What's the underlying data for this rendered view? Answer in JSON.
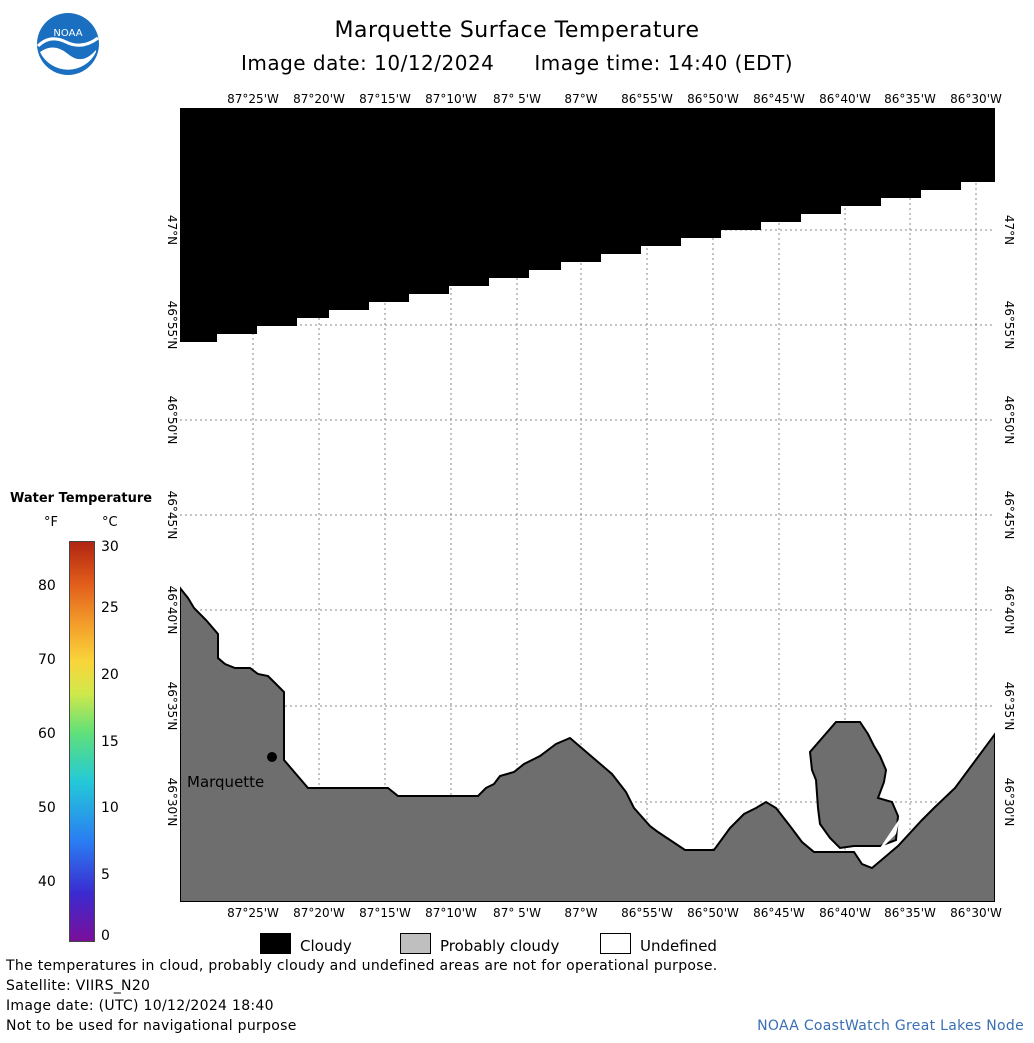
{
  "title": "Marquette Surface Temperature",
  "image_date_label": "Image date: 10/12/2024",
  "image_time_label": "Image time: 14:40 (EDT)",
  "logo_text": "NOAA",
  "longitude_labels": [
    "87°25'W",
    "87°20'W",
    "87°15'W",
    "87°10'W",
    "87° 5'W",
    "87°W",
    "86°55'W",
    "86°50'W",
    "86°45'W",
    "86°40'W",
    "86°35'W",
    "86°30'W"
  ],
  "latitude_labels": [
    "47°N",
    "46°55'N",
    "46°50'N",
    "46°45'N",
    "46°40'N",
    "46°35'N",
    "46°30'N"
  ],
  "city_label": "Marquette",
  "legend": {
    "title": "Water Temperature",
    "unit_f": "°F",
    "unit_c": "°C",
    "fahrenheit_ticks": [
      "80",
      "70",
      "60",
      "50",
      "40"
    ],
    "celsius_ticks": [
      "30",
      "25",
      "20",
      "15",
      "10",
      "5",
      "0"
    ]
  },
  "categories": [
    {
      "label": "Cloudy",
      "color": "#000000"
    },
    {
      "label": "Probably cloudy",
      "color": "#bfbfbf"
    },
    {
      "label": "Undefined",
      "color": "#ffffff"
    }
  ],
  "land_color": "#6e6e6e",
  "footer": {
    "disclaimer": "The temperatures in cloud, probably cloudy and undefined areas are not for operational purpose.",
    "satellite": "Satellite: VIIRS_N20",
    "utc_date": "Image date: (UTC) 10/12/2024  18:40",
    "navigation": "Not to be used for navigational purpose",
    "credit": "NOAA CoastWatch Great Lakes Node"
  }
}
